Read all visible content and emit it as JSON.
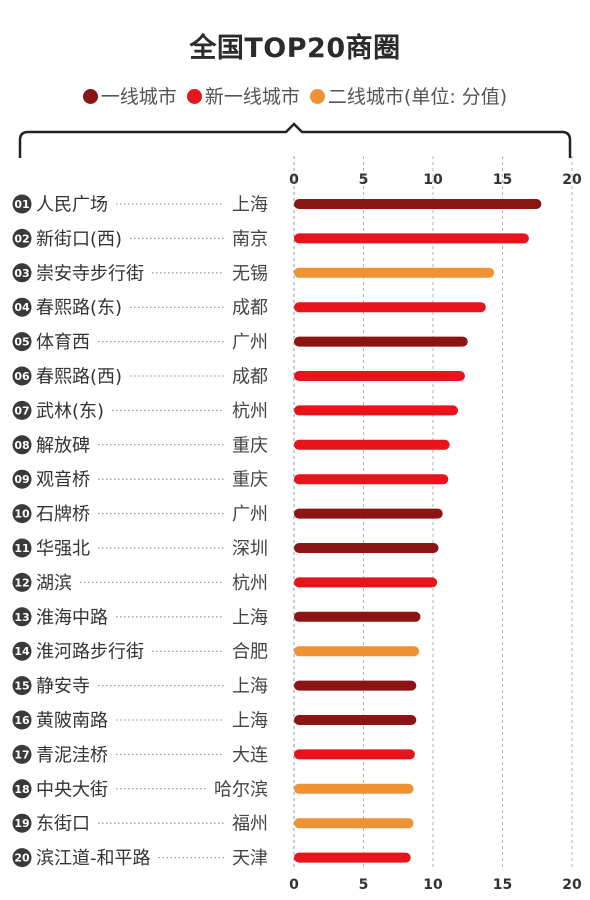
{
  "chart_data": {
    "type": "bar",
    "orientation": "horizontal",
    "title": "全国TOP20商圈",
    "legend_text": "(单位: 分值)",
    "legend_placement": "top",
    "xlim": [
      0,
      20
    ],
    "xticks": [
      0,
      5,
      10,
      15,
      20
    ],
    "grid": "dashed-vertical",
    "series": [
      {
        "name": "一线城市",
        "color": "#8b1414"
      },
      {
        "name": "新一线城市",
        "color": "#e8141c"
      },
      {
        "name": "二线城市",
        "color": "#ef9233"
      }
    ],
    "rows": [
      {
        "rank": "01",
        "name": "人民广场",
        "city": "上海",
        "tier": 0,
        "value": 17.8
      },
      {
        "rank": "02",
        "name": "新街口(西)",
        "city": "南京",
        "tier": 1,
        "value": 16.9
      },
      {
        "rank": "03",
        "name": "崇安寺步行街",
        "city": "无锡",
        "tier": 2,
        "value": 14.4
      },
      {
        "rank": "04",
        "name": "春熙路(东)",
        "city": "成都",
        "tier": 1,
        "value": 13.8
      },
      {
        "rank": "05",
        "name": "体育西",
        "city": "广州",
        "tier": 0,
        "value": 12.5
      },
      {
        "rank": "06",
        "name": "春熙路(西)",
        "city": "成都",
        "tier": 1,
        "value": 12.3
      },
      {
        "rank": "07",
        "name": "武林(东)",
        "city": "杭州",
        "tier": 1,
        "value": 11.8
      },
      {
        "rank": "08",
        "name": "解放碑",
        "city": "重庆",
        "tier": 1,
        "value": 11.2
      },
      {
        "rank": "09",
        "name": "观音桥",
        "city": "重庆",
        "tier": 1,
        "value": 11.1
      },
      {
        "rank": "10",
        "name": "石牌桥",
        "city": "广州",
        "tier": 0,
        "value": 10.7
      },
      {
        "rank": "11",
        "name": "华强北",
        "city": "深圳",
        "tier": 0,
        "value": 10.4
      },
      {
        "rank": "12",
        "name": "湖滨",
        "city": "杭州",
        "tier": 1,
        "value": 10.3
      },
      {
        "rank": "13",
        "name": "淮海中路",
        "city": "上海",
        "tier": 0,
        "value": 9.1
      },
      {
        "rank": "14",
        "name": "淮河路步行街",
        "city": "合肥",
        "tier": 2,
        "value": 9.0
      },
      {
        "rank": "15",
        "name": "静安寺",
        "city": "上海",
        "tier": 0,
        "value": 8.8
      },
      {
        "rank": "16",
        "name": "黄陂南路",
        "city": "上海",
        "tier": 0,
        "value": 8.8
      },
      {
        "rank": "17",
        "name": "青泥洼桥",
        "city": "大连",
        "tier": 1,
        "value": 8.7
      },
      {
        "rank": "18",
        "name": "中央大街",
        "city": "哈尔滨",
        "tier": 2,
        "value": 8.6
      },
      {
        "rank": "19",
        "name": "东街口",
        "city": "福州",
        "tier": 2,
        "value": 8.6
      },
      {
        "rank": "20",
        "name": "滨江道-和平路",
        "city": "天津",
        "tier": 1,
        "value": 8.4
      }
    ]
  }
}
